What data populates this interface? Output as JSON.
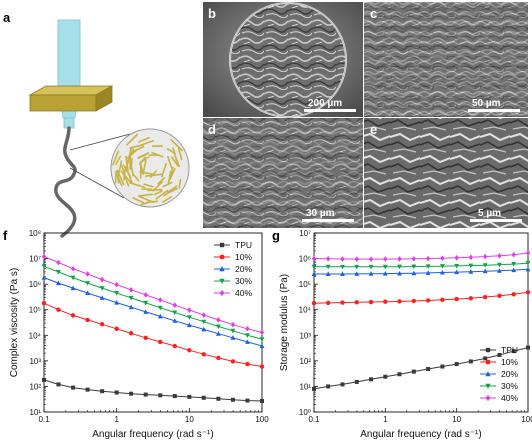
{
  "panel_labels": {
    "a": "a",
    "b": "b",
    "c": "c",
    "d": "d",
    "e": "e",
    "f": "f",
    "g": "g"
  },
  "sem_panels": [
    {
      "letter": "b",
      "scale_bar": "200 µm"
    },
    {
      "letter": "c",
      "scale_bar": "50 µm"
    },
    {
      "letter": "d",
      "scale_bar": "30 µm"
    },
    {
      "letter": "e",
      "scale_bar": "5 µm"
    }
  ],
  "colors": {
    "TPU": "#3a3a3a",
    "10%": "#ff2020",
    "20%": "#1f5fe0",
    "30%": "#12a34a",
    "40%": "#e040e8",
    "nozzle": "#a6dfe8",
    "plate": "#b8a233",
    "strand": "#666666",
    "fiber": "#c8b445"
  },
  "chart_data": [
    {
      "type": "line",
      "panel": "f",
      "xlabel": "Angular frequency (rad s⁻¹)",
      "ylabel": "Complex viscosity (Pa s)",
      "xscale": "log",
      "yscale": "log",
      "xlim": [
        0.1,
        100
      ],
      "ylim": [
        10,
        100000000
      ],
      "xticks": [
        "0.1",
        "1",
        "10",
        "100"
      ],
      "yticks": [
        "10¹",
        "10²",
        "10³",
        "10⁴",
        "10⁵",
        "10⁶",
        "10⁷",
        "10⁸"
      ],
      "legend_position": "top-right",
      "x": [
        0.1,
        0.158,
        0.251,
        0.398,
        0.631,
        1,
        1.58,
        2.51,
        3.98,
        6.31,
        10,
        15.8,
        25.1,
        39.8,
        63.1,
        100
      ],
      "series": [
        {
          "name": "TPU",
          "marker": "square",
          "values": [
            180,
            120,
            90,
            75,
            65,
            58,
            52,
            48,
            45,
            42,
            39,
            36,
            33,
            30,
            28,
            27
          ]
        },
        {
          "name": "10%",
          "marker": "circle",
          "values": [
            180000,
            100000,
            60000,
            40000,
            27000,
            18000,
            12000,
            8000,
            5500,
            3800,
            2600,
            1800,
            1300,
            950,
            750,
            600
          ]
        },
        {
          "name": "20%",
          "marker": "triangle-up",
          "values": [
            1800000,
            1100000,
            700000,
            450000,
            290000,
            190000,
            125000,
            82000,
            55000,
            37000,
            25000,
            17000,
            11500,
            8000,
            5500,
            3800
          ]
        },
        {
          "name": "30%",
          "marker": "triangle-down",
          "values": [
            5000000,
            3000000,
            1800000,
            1100000,
            700000,
            450000,
            290000,
            185000,
            120000,
            78000,
            51000,
            34000,
            22000,
            15000,
            10000,
            7000
          ]
        },
        {
          "name": "40%",
          "marker": "diamond",
          "values": [
            12000000,
            7000000,
            4000000,
            2500000,
            1500000,
            950000,
            600000,
            380000,
            240000,
            150000,
            97000,
            62000,
            40000,
            26000,
            18000,
            13000
          ]
        }
      ]
    },
    {
      "type": "line",
      "panel": "g",
      "xlabel": "Angular frequency (rad s⁻¹)",
      "ylabel": "Storage modulus (Pa)",
      "xscale": "log",
      "yscale": "log",
      "xlim": [
        0.1,
        100
      ],
      "ylim": [
        1,
        10000000
      ],
      "xticks": [
        "0.1",
        "1",
        "10",
        "100"
      ],
      "yticks": [
        "10⁰",
        "10¹",
        "10²",
        "10³",
        "10⁴",
        "10⁵",
        "10⁶",
        "10⁷"
      ],
      "legend_position": "bottom-right",
      "x": [
        0.1,
        0.158,
        0.251,
        0.398,
        0.631,
        1,
        1.58,
        2.51,
        3.98,
        6.31,
        10,
        15.8,
        25.1,
        39.8,
        63.1,
        100
      ],
      "series": [
        {
          "name": "TPU",
          "marker": "square",
          "values": [
            8,
            10,
            12,
            15,
            19,
            24,
            30,
            38,
            48,
            60,
            75,
            95,
            125,
            170,
            240,
            330
          ]
        },
        {
          "name": "10%",
          "marker": "circle",
          "values": [
            18000,
            18500,
            19000,
            19500,
            20000,
            20500,
            21000,
            22000,
            23000,
            24500,
            26000,
            28000,
            31000,
            35000,
            40000,
            48000
          ]
        },
        {
          "name": "20%",
          "marker": "triangle-up",
          "values": [
            250000,
            250000,
            250000,
            252000,
            255000,
            258000,
            262000,
            268000,
            275000,
            285000,
            295000,
            305000,
            320000,
            335000,
            355000,
            380000
          ]
        },
        {
          "name": "30%",
          "marker": "triangle-down",
          "values": [
            480000,
            478000,
            476000,
            475000,
            476000,
            478000,
            482000,
            488000,
            495000,
            505000,
            515000,
            530000,
            550000,
            575000,
            610000,
            660000
          ]
        },
        {
          "name": "40%",
          "marker": "diamond",
          "values": [
            1000000,
            980000,
            960000,
            950000,
            950000,
            955000,
            965000,
            980000,
            1000000,
            1030000,
            1070000,
            1120000,
            1190000,
            1280000,
            1420000,
            1650000
          ]
        }
      ]
    }
  ]
}
